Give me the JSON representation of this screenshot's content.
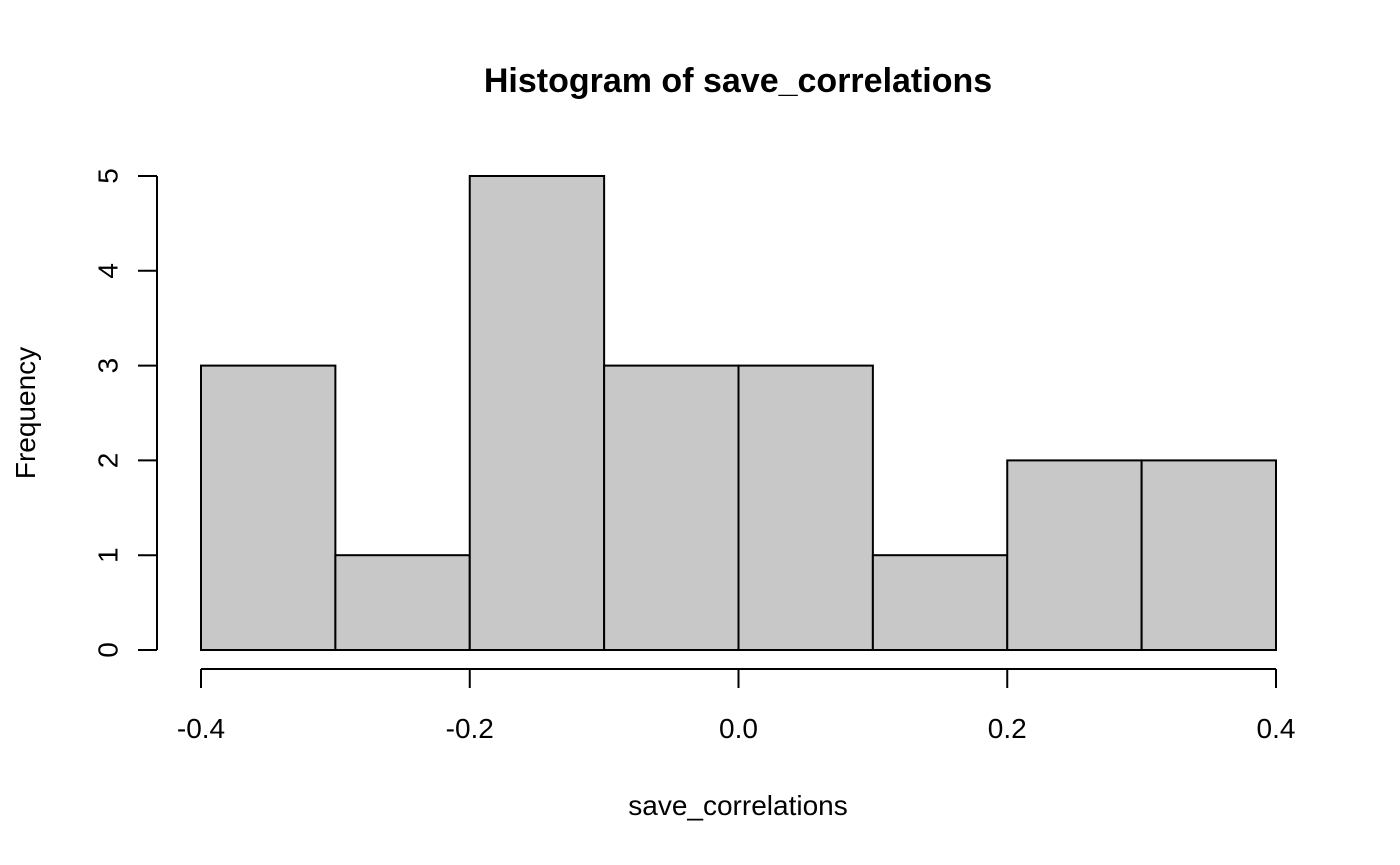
{
  "chart_data": {
    "type": "bar",
    "title": "Histogram of save_correlations",
    "xlabel": "save_correlations",
    "ylabel": "Frequency",
    "bins": [
      {
        "start": -0.4,
        "end": -0.3,
        "count": 3
      },
      {
        "start": -0.3,
        "end": -0.2,
        "count": 1
      },
      {
        "start": -0.2,
        "end": -0.1,
        "count": 5
      },
      {
        "start": -0.1,
        "end": 0.0,
        "count": 3
      },
      {
        "start": 0.0,
        "end": 0.1,
        "count": 3
      },
      {
        "start": 0.1,
        "end": 0.2,
        "count": 1
      },
      {
        "start": 0.2,
        "end": 0.3,
        "count": 2
      },
      {
        "start": 0.3,
        "end": 0.4,
        "count": 2
      }
    ],
    "xlim": [
      -0.4,
      0.4
    ],
    "ylim": [
      0,
      5
    ],
    "x_ticks": [
      {
        "value": -0.4,
        "label": "-0.4"
      },
      {
        "value": -0.2,
        "label": "-0.2"
      },
      {
        "value": 0.0,
        "label": "0.0"
      },
      {
        "value": 0.2,
        "label": "0.2"
      },
      {
        "value": 0.4,
        "label": "0.4"
      }
    ],
    "y_ticks": [
      {
        "value": 0,
        "label": "0"
      },
      {
        "value": 1,
        "label": "1"
      },
      {
        "value": 2,
        "label": "2"
      },
      {
        "value": 3,
        "label": "3"
      },
      {
        "value": 4,
        "label": "4"
      },
      {
        "value": 5,
        "label": "5"
      }
    ],
    "grid": false,
    "legend": "none",
    "colors": {
      "bar_fill": "#c8c8c8",
      "bar_stroke": "#000000",
      "axis": "#000000",
      "background": "#ffffff"
    }
  }
}
